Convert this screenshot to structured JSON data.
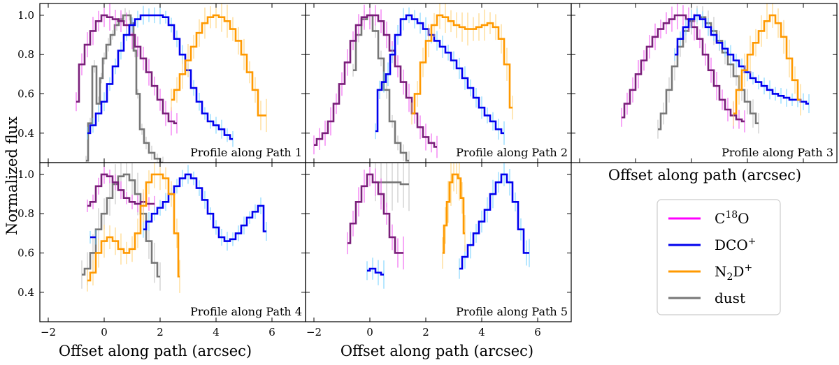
{
  "chart_data": {
    "type": "line",
    "ylabel": "Normalized flux",
    "xlabel": "Offset along path (arcsec)",
    "ylim": [
      0.25,
      1.06
    ],
    "y_ticks": [
      0.4,
      0.6,
      0.8,
      1.0
    ],
    "y_tick_labels": [
      "0.4",
      "0.6",
      "0.8",
      "1.0"
    ],
    "xlim": [
      -2.3,
      7.2
    ],
    "x_ticks": [
      -2,
      0,
      2,
      4,
      6
    ],
    "x_tick_labels": [
      "−2",
      "0",
      "2",
      "4",
      "6"
    ],
    "series_styles": [
      {
        "key": "c18o",
        "name": "C18O",
        "legend_main": "C",
        "legend_sup_pre": "18",
        "legend_tail": "O",
        "color": "#7a1f7a",
        "err_color": "#ee44ee",
        "legend_color": "#ff00ff"
      },
      {
        "key": "dco",
        "name": "DCO+",
        "legend_main": "DCO",
        "legend_sup_post": "+",
        "color": "#0000ee",
        "err_color": "#66ccff",
        "legend_color": "#0000ee"
      },
      {
        "key": "n2d",
        "name": "N2D+",
        "legend_main": "N",
        "legend_sub": "2",
        "legend_tail": "D",
        "legend_sup_post": "+",
        "color": "#ff9900",
        "err_color": "#ffcc66",
        "legend_color": "#ff9900"
      },
      {
        "key": "dust",
        "name": "dust",
        "legend_main": "dust",
        "color": "#777777",
        "err_color": "#bbbbbb",
        "legend_color": "#777777"
      }
    ],
    "panels": [
      {
        "label": "Profile along Path 1",
        "series": {
          "c18o": {
            "x": [
              -1.0,
              -0.8,
              -0.6,
              -0.4,
              -0.2,
              0.0,
              0.2,
              0.4,
              0.6,
              0.8,
              1.0,
              1.2,
              1.4,
              1.6,
              1.8,
              2.0,
              2.2,
              2.4,
              2.6
            ],
            "y": [
              0.56,
              0.75,
              0.85,
              0.92,
              0.97,
              1.0,
              0.99,
              0.98,
              0.97,
              0.95,
              0.9,
              0.84,
              0.78,
              0.71,
              0.64,
              0.57,
              0.5,
              0.46,
              0.45
            ],
            "err": 0.06
          },
          "dco": {
            "x": [
              -0.6,
              -0.4,
              -0.2,
              0.0,
              0.2,
              0.4,
              0.6,
              0.8,
              1.0,
              1.2,
              1.4,
              1.6,
              1.8,
              2.0,
              2.2,
              2.4,
              2.6,
              2.8,
              3.0,
              3.2,
              3.4,
              3.6,
              3.8,
              4.0,
              4.2,
              4.4,
              4.6
            ],
            "y": [
              0.4,
              0.44,
              0.5,
              0.56,
              0.65,
              0.74,
              0.82,
              0.9,
              0.95,
              0.98,
              1.0,
              1.0,
              1.0,
              1.0,
              0.99,
              0.95,
              0.88,
              0.8,
              0.72,
              0.63,
              0.56,
              0.5,
              0.46,
              0.44,
              0.42,
              0.39,
              0.37
            ],
            "err": 0.04
          },
          "n2d": {
            "x": [
              2.4,
              2.6,
              2.8,
              3.0,
              3.2,
              3.4,
              3.6,
              3.8,
              4.0,
              4.2,
              4.4,
              4.6,
              4.8,
              5.0,
              5.2,
              5.4,
              5.6,
              5.8
            ],
            "y": [
              0.57,
              0.62,
              0.7,
              0.77,
              0.84,
              0.91,
              0.96,
              0.99,
              1.0,
              0.99,
              0.97,
              0.93,
              0.87,
              0.8,
              0.71,
              0.62,
              0.49,
              0.49
            ],
            "err": 0.07
          },
          "dust": {
            "x": [
              -0.65,
              -0.5,
              -0.35,
              -0.2,
              -0.1,
              0.0,
              0.15,
              0.3,
              0.45,
              0.6,
              0.75,
              0.9,
              1.0,
              1.1,
              1.2,
              1.35,
              1.5,
              1.7,
              1.9,
              2.1
            ],
            "y": [
              0.26,
              0.45,
              0.74,
              0.55,
              0.68,
              0.78,
              0.85,
              0.9,
              0.95,
              0.98,
              1.0,
              1.0,
              0.96,
              0.82,
              0.6,
              0.42,
              0.35,
              0.3,
              0.27,
              0.25
            ],
            "err": 0.03
          }
        }
      },
      {
        "label": "Profile along Path 2",
        "series": {
          "c18o": {
            "x": [
              -2.0,
              -1.8,
              -1.6,
              -1.4,
              -1.2,
              -1.0,
              -0.8,
              -0.6,
              -0.4,
              -0.2,
              0.0,
              0.2,
              0.4,
              0.6,
              0.8,
              1.0,
              1.2,
              1.4,
              1.6,
              1.8,
              2.0,
              2.2,
              2.4
            ],
            "y": [
              0.34,
              0.37,
              0.4,
              0.46,
              0.55,
              0.65,
              0.76,
              0.87,
              0.95,
              0.99,
              1.0,
              1.0,
              0.97,
              0.9,
              0.82,
              0.74,
              0.66,
              0.58,
              0.5,
              0.43,
              0.38,
              0.35,
              0.33
            ],
            "err": 0.06
          },
          "dco": {
            "x": [
              0.2,
              0.35,
              0.5,
              0.65,
              0.8,
              1.0,
              1.2,
              1.4,
              1.6,
              1.8,
              2.0,
              2.2,
              2.4,
              2.6,
              2.8,
              3.0,
              3.2,
              3.4,
              3.6,
              3.8,
              4.0,
              4.2,
              4.4,
              4.6,
              4.8
            ],
            "y": [
              0.41,
              0.62,
              0.66,
              0.7,
              0.8,
              0.9,
              0.98,
              1.0,
              0.98,
              0.96,
              0.93,
              0.9,
              0.87,
              0.84,
              0.81,
              0.77,
              0.73,
              0.68,
              0.63,
              0.58,
              0.53,
              0.49,
              0.46,
              0.42,
              0.4
            ],
            "err": 0.05
          },
          "n2d": {
            "x": [
              1.5,
              1.7,
              1.9,
              2.1,
              2.3,
              2.5,
              2.7,
              2.9,
              3.1,
              3.3,
              3.5,
              3.7,
              3.9,
              4.1,
              4.3,
              4.5,
              4.7,
              4.9,
              5.1
            ],
            "y": [
              0.5,
              0.6,
              0.76,
              0.87,
              0.95,
              1.0,
              0.99,
              0.97,
              0.95,
              0.94,
              0.93,
              0.93,
              0.94,
              0.95,
              0.96,
              0.94,
              0.88,
              0.75,
              0.53
            ],
            "err": 0.07
          },
          "dust": {
            "x": [
              -0.6,
              -0.4,
              -0.2,
              0.0,
              0.2,
              0.4,
              0.6,
              0.8,
              1.0,
              1.2,
              1.4
            ],
            "y": [
              0.72,
              0.9,
              0.98,
              1.0,
              0.92,
              0.78,
              0.62,
              0.46,
              0.35,
              0.3,
              0.26
            ],
            "err": 0.04
          }
        }
      },
      {
        "label": "Profile along Path 3",
        "series": {
          "c18o": {
            "x": [
              -0.5,
              -0.3,
              -0.1,
              0.1,
              0.3,
              0.5,
              0.7,
              0.9,
              1.1,
              1.3,
              1.5,
              1.7,
              1.9,
              2.1,
              2.3,
              2.5,
              2.7,
              2.9,
              3.1,
              3.3,
              3.5,
              3.7,
              3.9
            ],
            "y": [
              0.48,
              0.55,
              0.62,
              0.7,
              0.77,
              0.84,
              0.89,
              0.93,
              0.96,
              0.98,
              1.0,
              1.0,
              0.98,
              0.94,
              0.88,
              0.8,
              0.72,
              0.64,
              0.57,
              0.52,
              0.49,
              0.47,
              0.46
            ],
            "err": 0.06
          },
          "dco": {
            "x": [
              1.4,
              1.6,
              1.8,
              2.0,
              2.2,
              2.4,
              2.6,
              2.8,
              3.0,
              3.2,
              3.4,
              3.6,
              3.8,
              4.0,
              4.2,
              4.4,
              4.6,
              4.8,
              5.0,
              5.2,
              5.4,
              5.6,
              5.8,
              6.0,
              6.2
            ],
            "y": [
              0.8,
              0.88,
              0.94,
              0.98,
              1.0,
              0.98,
              0.94,
              0.9,
              0.86,
              0.83,
              0.8,
              0.77,
              0.74,
              0.71,
              0.68,
              0.66,
              0.64,
              0.62,
              0.6,
              0.59,
              0.58,
              0.57,
              0.57,
              0.56,
              0.55
            ],
            "err": 0.04
          },
          "n2d": {
            "x": [
              3.5,
              3.7,
              3.9,
              4.1,
              4.3,
              4.5,
              4.7,
              4.9,
              5.1,
              5.3,
              5.5,
              5.7,
              5.9
            ],
            "y": [
              0.5,
              0.62,
              0.72,
              0.8,
              0.86,
              0.92,
              0.97,
              1.0,
              0.96,
              0.89,
              0.78,
              0.67,
              0.57
            ],
            "err": 0.08
          },
          "dust": {
            "x": [
              0.8,
              1.0,
              1.2,
              1.4,
              1.6,
              1.8,
              2.0,
              2.2,
              2.4,
              2.6,
              2.8,
              3.0,
              3.2,
              3.4,
              3.6,
              3.8,
              4.0,
              4.2,
              4.4
            ],
            "y": [
              0.42,
              0.5,
              0.62,
              0.74,
              0.84,
              0.92,
              0.97,
              1.0,
              0.99,
              0.96,
              0.92,
              0.87,
              0.81,
              0.75,
              0.69,
              0.62,
              0.56,
              0.5,
              0.45
            ],
            "err": 0.06
          }
        }
      },
      {
        "label": "Profile along Path 4",
        "series": {
          "c18o": {
            "x": [
              -0.6,
              -0.4,
              -0.2,
              0.0,
              0.2,
              0.4,
              0.6,
              0.8,
              1.0,
              1.2,
              1.4,
              1.6,
              1.8
            ],
            "y": [
              0.84,
              0.86,
              0.94,
              1.0,
              0.99,
              0.96,
              0.92,
              0.88,
              0.86,
              0.85,
              0.86,
              0.85,
              0.85
            ],
            "err": 0.04
          },
          "dco": {
            "x": [
              -0.5,
              -0.3,
              1.4,
              1.6,
              1.8,
              2.0,
              2.2,
              2.4,
              2.6,
              2.8,
              3.0,
              3.2,
              3.4,
              3.6,
              3.8,
              4.0,
              4.2,
              4.4,
              4.6,
              4.8,
              5.0,
              5.2,
              5.4,
              5.6,
              5.8
            ],
            "y": [
              0.68,
              0.68,
              0.72,
              0.76,
              0.8,
              0.83,
              0.86,
              0.9,
              0.94,
              0.98,
              1.0,
              0.98,
              0.93,
              0.87,
              0.8,
              0.73,
              0.68,
              0.66,
              0.67,
              0.7,
              0.74,
              0.78,
              0.81,
              0.84,
              0.71
            ],
            "err": 0.04
          },
          "n2d": {
            "x": [
              -0.6,
              -0.4,
              -0.2,
              0.0,
              0.2,
              0.4,
              0.6,
              0.8,
              1.0,
              1.2,
              1.4,
              1.6,
              1.8,
              2.0,
              2.2,
              2.4,
              2.6,
              2.7
            ],
            "y": [
              0.46,
              0.5,
              0.6,
              0.66,
              0.68,
              0.66,
              0.62,
              0.6,
              0.62,
              0.7,
              0.84,
              0.96,
              1.0,
              1.0,
              0.98,
              0.9,
              0.7,
              0.48
            ],
            "err": 0.07
          },
          "dust": {
            "x": [
              -0.8,
              -0.6,
              -0.4,
              -0.2,
              0.0,
              0.2,
              0.4,
              0.6,
              0.8,
              1.0,
              1.2,
              1.4,
              1.6,
              1.8,
              2.0
            ],
            "y": [
              0.49,
              0.52,
              0.6,
              0.72,
              0.8,
              0.88,
              0.95,
              0.99,
              1.0,
              0.97,
              0.9,
              0.8,
              0.66,
              0.55,
              0.48
            ],
            "err": 0.09
          }
        }
      },
      {
        "label": "Profile along Path 5",
        "series": {
          "c18o": {
            "x": [
              -0.8,
              -0.6,
              -0.4,
              -0.2,
              0.0,
              0.2,
              0.4,
              0.6,
              0.8,
              1.0,
              1.2
            ],
            "y": [
              0.65,
              0.75,
              0.86,
              0.94,
              1.0,
              0.96,
              0.9,
              0.8,
              0.68,
              0.6,
              0.6
            ],
            "err": 0.07
          },
          "dco": {
            "x": [
              -0.1,
              0.1,
              0.3,
              0.5,
              3.2,
              3.4,
              3.6,
              3.8,
              4.0,
              4.2,
              4.4,
              4.6,
              4.8,
              5.0,
              5.2,
              5.4,
              5.6,
              5.7
            ],
            "y": [
              0.51,
              0.52,
              0.5,
              0.49,
              0.52,
              0.58,
              0.64,
              0.7,
              0.76,
              0.82,
              0.9,
              0.96,
              1.0,
              0.96,
              0.86,
              0.72,
              0.6,
              0.6
            ],
            "err": 0.06
          },
          "n2d": {
            "x": [
              2.6,
              2.7,
              2.8,
              2.9,
              3.0,
              3.1,
              3.2,
              3.3,
              3.4
            ],
            "y": [
              0.6,
              0.74,
              0.86,
              0.96,
              1.0,
              1.0,
              0.98,
              0.88,
              0.7
            ],
            "err": 0.1
          },
          "dust": {
            "x": [
              0.2,
              0.4,
              0.6,
              0.8,
              1.0,
              1.2,
              1.4
            ],
            "y": [
              0.96,
              0.96,
              0.96,
              0.96,
              0.96,
              0.95,
              0.95
            ],
            "err": 0.12
          }
        }
      }
    ],
    "legend": {
      "placement": "bottom-right"
    }
  }
}
